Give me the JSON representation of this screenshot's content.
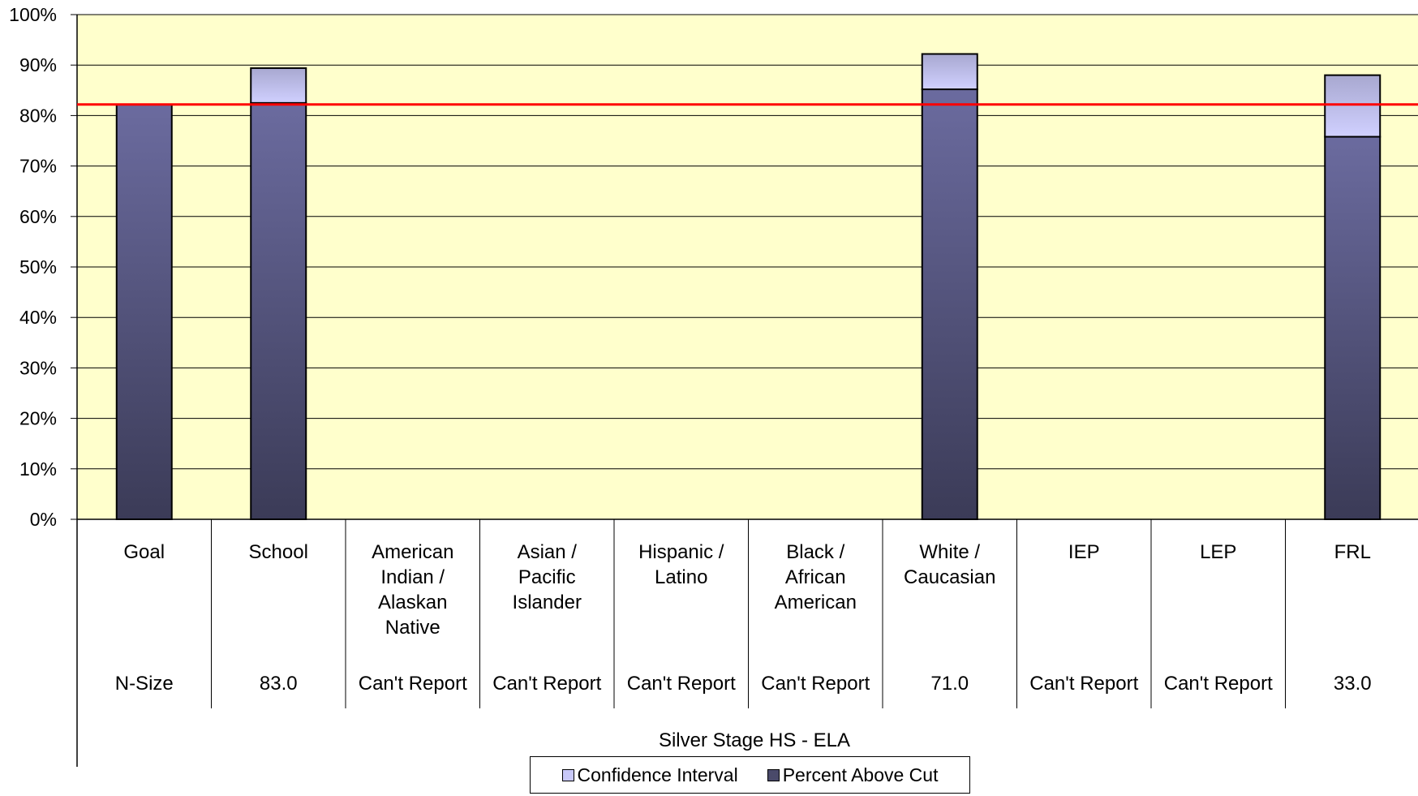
{
  "chart_data": {
    "type": "bar",
    "subtitle": "Silver Stage HS - ELA",
    "categories": [
      [
        "Goal"
      ],
      [
        "School"
      ],
      [
        "American",
        "Indian /",
        "Alaskan",
        "Native"
      ],
      [
        "Asian /",
        "Pacific",
        "Islander"
      ],
      [
        "Hispanic /",
        "Latino"
      ],
      [
        "Black /",
        "African",
        "American"
      ],
      [
        "White /",
        "Caucasian"
      ],
      [
        "IEP"
      ],
      [
        "LEP"
      ],
      [
        "FRL"
      ]
    ],
    "n_size": [
      "N-Size",
      "83.0",
      "Can't Report",
      "Can't Report",
      "Can't Report",
      "Can't Report",
      "71.0",
      "Can't Report",
      "Can't Report",
      "33.0"
    ],
    "series": [
      {
        "name": "Percent Above Cut",
        "values": [
          82.2,
          82.5,
          null,
          null,
          null,
          null,
          85.2,
          null,
          null,
          75.8
        ]
      },
      {
        "name": "Confidence Interval",
        "values": [
          0,
          6.9,
          null,
          null,
          null,
          null,
          7.0,
          null,
          null,
          12.2
        ]
      }
    ],
    "goal_line": 82.2,
    "ylim": [
      0,
      100
    ],
    "y_ticks": [
      "0%",
      "10%",
      "20%",
      "30%",
      "40%",
      "50%",
      "60%",
      "70%",
      "80%",
      "90%",
      "100%"
    ],
    "grid": true,
    "legend_position": "bottom-center",
    "colors": {
      "plot_bg": "#FFFFCC",
      "bar_top": "#6B6B9F",
      "bar_bottom": "#3B3B57",
      "ci_top": "#A8A8D0",
      "ci_bottom": "#D0D0FF",
      "goal_line": "#FF0000",
      "swatch_ci": "#C8C8F8",
      "swatch_pac": "#4A4A6A"
    }
  },
  "legend": {
    "items": [
      {
        "label": "Confidence Interval",
        "color": "#C8C8F8"
      },
      {
        "label": "Percent Above Cut",
        "color": "#4A4A6A"
      }
    ]
  }
}
